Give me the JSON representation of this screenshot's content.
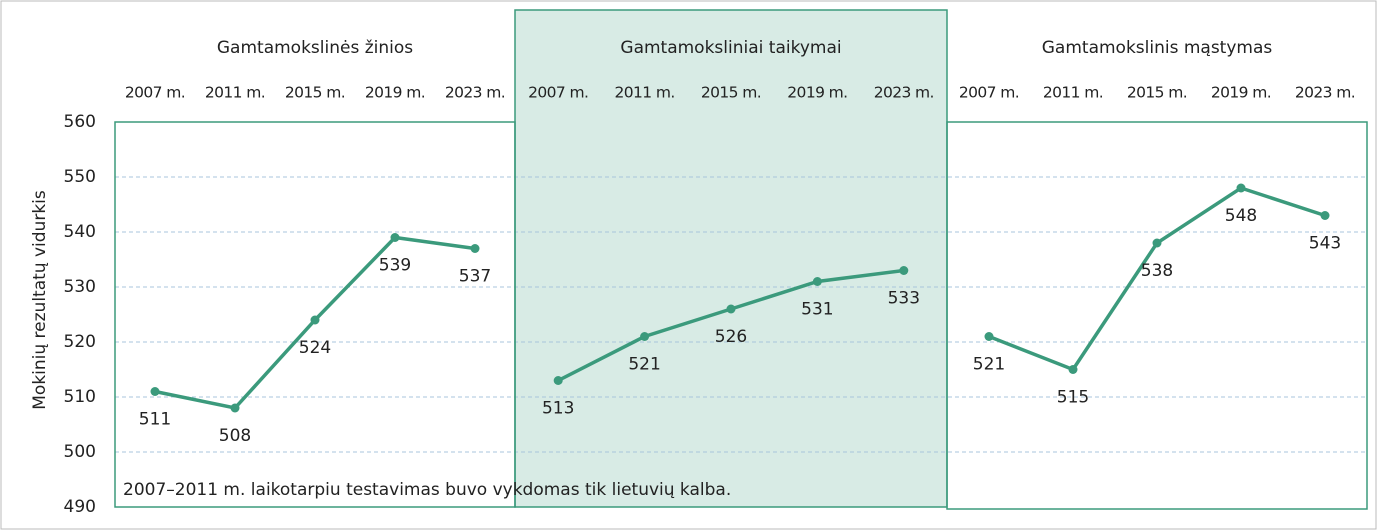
{
  "chart_data": {
    "type": "line",
    "color": "#3b9a7c",
    "ylabel": "Mokinių rezultatų vidurkis",
    "note": "2007–2011 m. laikotarpiu testavimas buvo vykdomas tik lietuvių kalba.",
    "ylim": [
      490,
      560
    ],
    "yticks": [
      490,
      500,
      510,
      520,
      530,
      540,
      550,
      560
    ],
    "grid": true,
    "panels": [
      {
        "title": "Gamtamokslinės žinios",
        "categories": [
          "2007 m.",
          "2011 m.",
          "2015 m.",
          "2019 m.",
          "2023 m."
        ],
        "values": [
          511,
          508,
          524,
          539,
          537
        ]
      },
      {
        "title": "Gamtamoksliniai taikymai",
        "categories": [
          "2007 m.",
          "2011 m.",
          "2015 m.",
          "2019 m.",
          "2023 m."
        ],
        "values": [
          513,
          521,
          526,
          531,
          533
        ]
      },
      {
        "title": "Gamtamokslinis mąstymas",
        "categories": [
          "2007 m.",
          "2011 m.",
          "2015 m.",
          "2019 m.",
          "2023 m."
        ],
        "values": [
          521,
          515,
          538,
          548,
          543
        ]
      }
    ]
  }
}
